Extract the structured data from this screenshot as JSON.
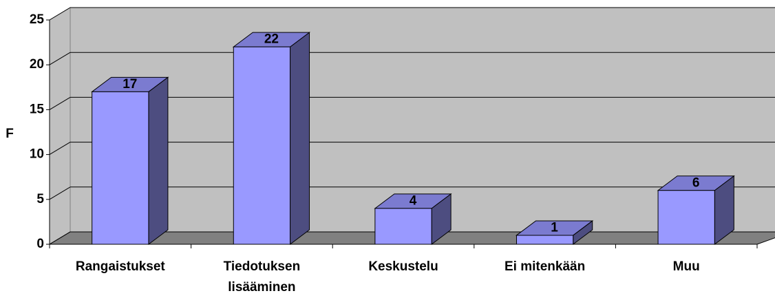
{
  "chart_data": {
    "type": "bar3d",
    "y_label": "F",
    "categories": [
      "Rangaistukset",
      "Tiedotuksen lisääminen",
      "Keskustelu",
      "Ei mitenkään",
      "Muu"
    ],
    "values": [
      17,
      22,
      4,
      1,
      6
    ],
    "color": "#9999ff",
    "ylim": [
      0,
      25
    ],
    "yticks": [
      0,
      5,
      10,
      15,
      20,
      25
    ],
    "grid": true
  }
}
